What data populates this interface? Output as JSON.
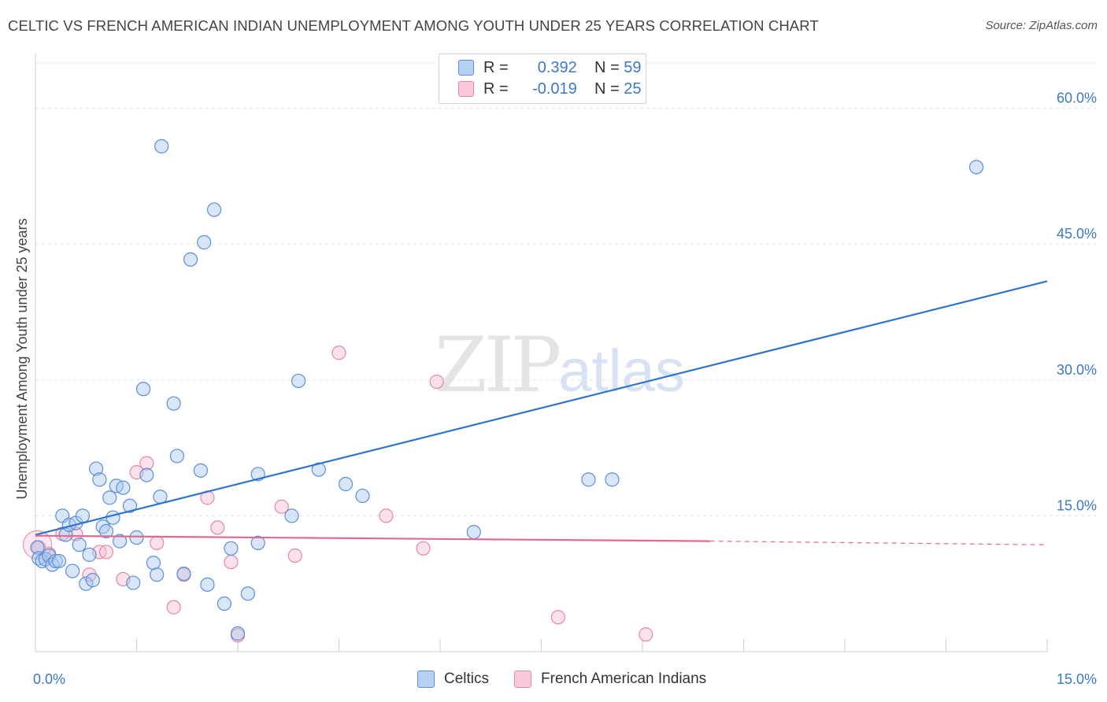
{
  "title": "CELTIC VS FRENCH AMERICAN INDIAN UNEMPLOYMENT AMONG YOUTH UNDER 25 YEARS CORRELATION CHART",
  "source": "Source: ZipAtlas.com",
  "watermark": {
    "zip": "ZIP",
    "atlas": "atlas"
  },
  "legend": {
    "r_label": "R =",
    "n_label": "N =",
    "rows": [
      {
        "r": "0.392",
        "n": "59"
      },
      {
        "r": "-0.019",
        "n": "25"
      }
    ]
  },
  "colors": {
    "celtics_fill": "#a9c8f0",
    "celtics_stroke": "#5b8fd6",
    "celtics_line": "#2f74cc",
    "fai_fill": "#f7bfd1",
    "fai_stroke": "#e587a6",
    "fai_line": "#e06a96",
    "tick_label": "#3b79c4"
  },
  "chart_data": {
    "type": "scatter",
    "title": "CELTIC VS FRENCH AMERICAN INDIAN UNEMPLOYMENT AMONG YOUTH UNDER 25 YEARS CORRELATION CHART",
    "xlabel": "",
    "ylabel": "Unemployment Among Youth under 25 years",
    "xlim": [
      0,
      15
    ],
    "ylim": [
      0,
      65
    ],
    "x_tick_labels": [
      "0.0%",
      "15.0%"
    ],
    "y_ticks": [
      15,
      30,
      45,
      60
    ],
    "y_tick_labels": [
      "15.0%",
      "30.0%",
      "45.0%",
      "60.0%"
    ],
    "grid": true,
    "series": [
      {
        "name": "Celtics",
        "r": 0.392,
        "n": 59,
        "trend": {
          "x0": 0,
          "y0": 12.9,
          "x1": 15,
          "y1": 40.9
        },
        "points": [
          [
            0.03,
            11.5
          ],
          [
            0.05,
            10.3
          ],
          [
            0.1,
            10.0
          ],
          [
            0.15,
            10.2
          ],
          [
            0.2,
            10.6
          ],
          [
            0.25,
            9.6
          ],
          [
            0.3,
            10.0
          ],
          [
            0.4,
            15.0
          ],
          [
            0.45,
            12.9
          ],
          [
            0.5,
            14.0
          ],
          [
            0.6,
            14.2
          ],
          [
            0.65,
            11.8
          ],
          [
            0.7,
            15.0
          ],
          [
            0.75,
            7.5
          ],
          [
            0.8,
            10.7
          ],
          [
            0.85,
            7.9
          ],
          [
            0.9,
            20.2
          ],
          [
            0.95,
            19.0
          ],
          [
            1.0,
            13.8
          ],
          [
            1.05,
            13.3
          ],
          [
            1.1,
            17.0
          ],
          [
            1.15,
            14.8
          ],
          [
            1.2,
            18.3
          ],
          [
            1.25,
            12.2
          ],
          [
            1.3,
            18.1
          ],
          [
            1.4,
            16.1
          ],
          [
            1.45,
            7.6
          ],
          [
            1.5,
            12.6
          ],
          [
            1.6,
            29.0
          ],
          [
            1.65,
            19.5
          ],
          [
            1.75,
            9.8
          ],
          [
            1.8,
            8.5
          ],
          [
            1.85,
            17.1
          ],
          [
            1.87,
            55.8
          ],
          [
            2.05,
            27.4
          ],
          [
            2.1,
            21.6
          ],
          [
            2.2,
            8.6
          ],
          [
            2.3,
            43.3
          ],
          [
            2.45,
            20.0
          ],
          [
            2.5,
            45.2
          ],
          [
            2.55,
            7.4
          ],
          [
            2.65,
            48.8
          ],
          [
            2.8,
            5.3
          ],
          [
            2.9,
            11.4
          ],
          [
            3.0,
            2.0
          ],
          [
            3.15,
            6.4
          ],
          [
            3.3,
            12.0
          ],
          [
            3.3,
            19.6
          ],
          [
            3.8,
            15.0
          ],
          [
            3.9,
            29.9
          ],
          [
            4.2,
            20.1
          ],
          [
            4.6,
            18.5
          ],
          [
            4.85,
            17.2
          ],
          [
            6.5,
            13.2
          ],
          [
            8.2,
            19.0
          ],
          [
            8.55,
            19.0
          ],
          [
            13.95,
            53.5
          ],
          [
            0.35,
            10.0
          ],
          [
            0.55,
            8.9
          ]
        ]
      },
      {
        "name": "French American Indians",
        "r": -0.019,
        "n": 25,
        "trend": {
          "x0": 0,
          "y0": 12.8,
          "x1": 10.0,
          "y1": 12.2,
          "dash_to_x": 15,
          "dash_to_y": 11.8
        },
        "points": [
          [
            0.05,
            11.5
          ],
          [
            0.2,
            10.8
          ],
          [
            0.4,
            13.0
          ],
          [
            0.6,
            13.0
          ],
          [
            0.8,
            8.5
          ],
          [
            0.95,
            11.0
          ],
          [
            1.05,
            11.0
          ],
          [
            1.3,
            8.0
          ],
          [
            1.5,
            19.8
          ],
          [
            1.65,
            20.8
          ],
          [
            1.8,
            12.0
          ],
          [
            2.05,
            4.9
          ],
          [
            2.2,
            8.5
          ],
          [
            2.55,
            17.0
          ],
          [
            2.7,
            13.7
          ],
          [
            2.9,
            9.9
          ],
          [
            3.0,
            1.8
          ],
          [
            3.65,
            16.0
          ],
          [
            3.85,
            10.6
          ],
          [
            4.5,
            33.0
          ],
          [
            5.2,
            15.0
          ],
          [
            5.75,
            11.4
          ],
          [
            5.95,
            29.8
          ],
          [
            7.75,
            3.8
          ],
          [
            9.05,
            1.9
          ]
        ]
      }
    ]
  },
  "bottom_legend": [
    "Celtics",
    "French American Indians"
  ]
}
